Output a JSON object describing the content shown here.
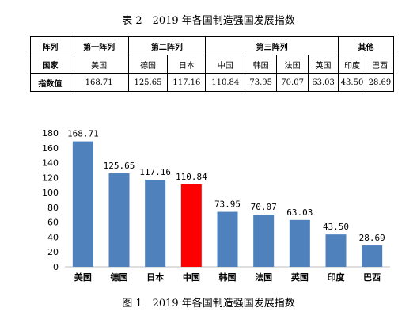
{
  "table": {
    "title": "表 2　2019 年各国制造强国发展指数",
    "header_row1": [
      "阵列",
      "第一阵列",
      "第二阵列",
      "第三阵列",
      "其他"
    ],
    "row_label_country": "国家",
    "row_label_index": "指数值",
    "countries": [
      "美国",
      "德国",
      "日本",
      "中国",
      "韩国",
      "法国",
      "英国",
      "印度",
      "巴西"
    ],
    "values": [
      "168.71",
      "125.65",
      "117.16",
      "110.84",
      "73.95",
      "70.07",
      "63.03",
      "43.50",
      "28.69"
    ]
  },
  "figure_caption": "图 1　2019 年各国制造强国发展指数",
  "chart_data": {
    "type": "bar",
    "title": "",
    "xlabel": "",
    "ylabel": "",
    "categories": [
      "美国",
      "德国",
      "日本",
      "中国",
      "韩国",
      "法国",
      "英国",
      "印度",
      "巴西"
    ],
    "values": [
      168.71,
      125.65,
      117.16,
      110.84,
      73.95,
      70.07,
      63.03,
      43.5,
      28.69
    ],
    "data_labels": [
      "168.71",
      "125.65",
      "117.16",
      "110.84",
      "73.95",
      "70.07",
      "63.03",
      "43.50",
      "28.69"
    ],
    "ylim": [
      0,
      180
    ],
    "yticks": [
      0,
      20,
      40,
      60,
      80,
      100,
      120,
      140,
      160,
      180
    ],
    "grid": false,
    "colors": {
      "default": "#4f81bd",
      "highlight": "#ff0000"
    },
    "highlight_index": 3
  }
}
